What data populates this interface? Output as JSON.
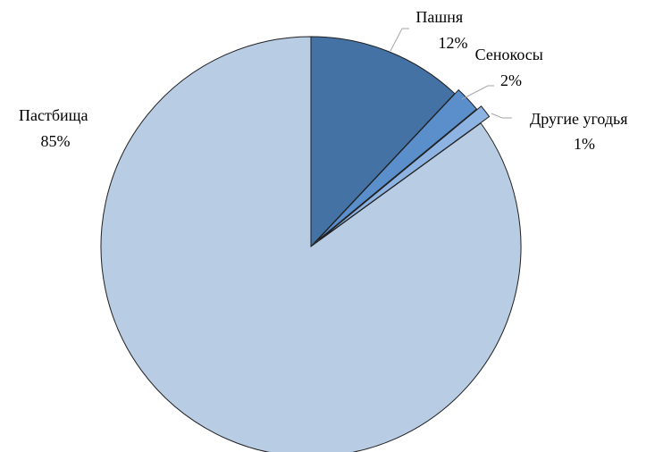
{
  "chart_data": {
    "type": "pie",
    "title": "",
    "categories": [
      "Пашня",
      "Сенокосы",
      "Другие угодья",
      "Пастбища"
    ],
    "values": [
      12,
      2,
      1,
      85
    ],
    "labels": [
      "12%",
      "2%",
      "1%",
      "85%"
    ],
    "colors": [
      "#4472a4",
      "#5a8fcc",
      "#8db3e2",
      "#b8cce4"
    ],
    "exploded": [
      "Сенокосы",
      "Другие угодья"
    ],
    "start_angle": "12 o'clock",
    "direction": "clockwise",
    "legend": "none",
    "data_labels": "category name and percentage, outside with leader lines"
  }
}
